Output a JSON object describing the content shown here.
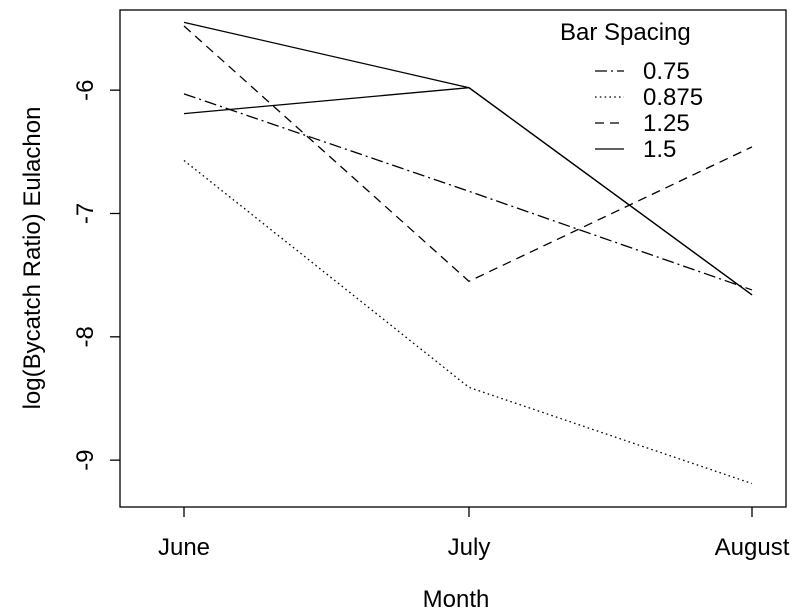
{
  "chart_data": {
    "type": "line",
    "xlabel": "Month",
    "ylabel": "log(Bycatch Ratio) Eulachon",
    "categories": [
      "June",
      "July",
      "August"
    ],
    "yticks": [
      -6,
      -7,
      -8,
      -9
    ],
    "ylim": [
      -9.38,
      -5.35
    ],
    "legend": {
      "title": "Bar Spacing",
      "placement": "top-right",
      "entries": [
        {
          "label": "0.75",
          "style": "dotdash"
        },
        {
          "label": "0.875",
          "style": "dotted"
        },
        {
          "label": "1.25",
          "style": "dashed"
        },
        {
          "label": "1.5",
          "style": "solid"
        }
      ]
    },
    "series": [
      {
        "style": "dotdash",
        "x": [
          "June",
          "July",
          "August"
        ],
        "values": [
          -6.03,
          -6.82,
          -7.62
        ]
      },
      {
        "style": "dotted",
        "x": [
          "June",
          "July",
          "August"
        ],
        "values": [
          -6.57,
          -8.41,
          -9.19
        ]
      },
      {
        "style": "dashed",
        "x": [
          "June",
          "July",
          "August"
        ],
        "values": [
          -5.48,
          -7.55,
          -6.46
        ]
      },
      {
        "style": "solid",
        "x": [
          "June",
          "July",
          "August"
        ],
        "values": [
          -6.19,
          -5.98,
          -7.66
        ]
      },
      {
        "style": "solid",
        "x": [
          "June",
          "July",
          "August"
        ],
        "values": [
          -5.45,
          -5.98,
          -7.66
        ]
      }
    ],
    "series_colors": [
      "#000000"
    ],
    "grid": false
  }
}
